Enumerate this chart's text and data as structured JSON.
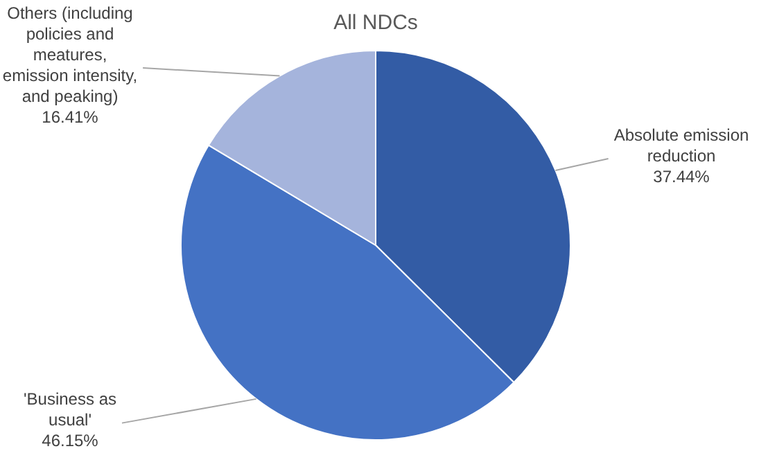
{
  "chart_data": {
    "type": "pie",
    "title": "All NDCs",
    "categories": [
      "Absolute emission reduction",
      "'Business as usual'",
      "Others (including policies and meatures, emission intensity, and peaking)"
    ],
    "values": [
      37.44,
      46.15,
      16.41
    ],
    "colors": [
      "#335ca5",
      "#4472c4",
      "#a5b4dc"
    ],
    "value_labels": [
      "37.44%",
      "46.15%",
      "16.41%"
    ],
    "legend": false
  }
}
